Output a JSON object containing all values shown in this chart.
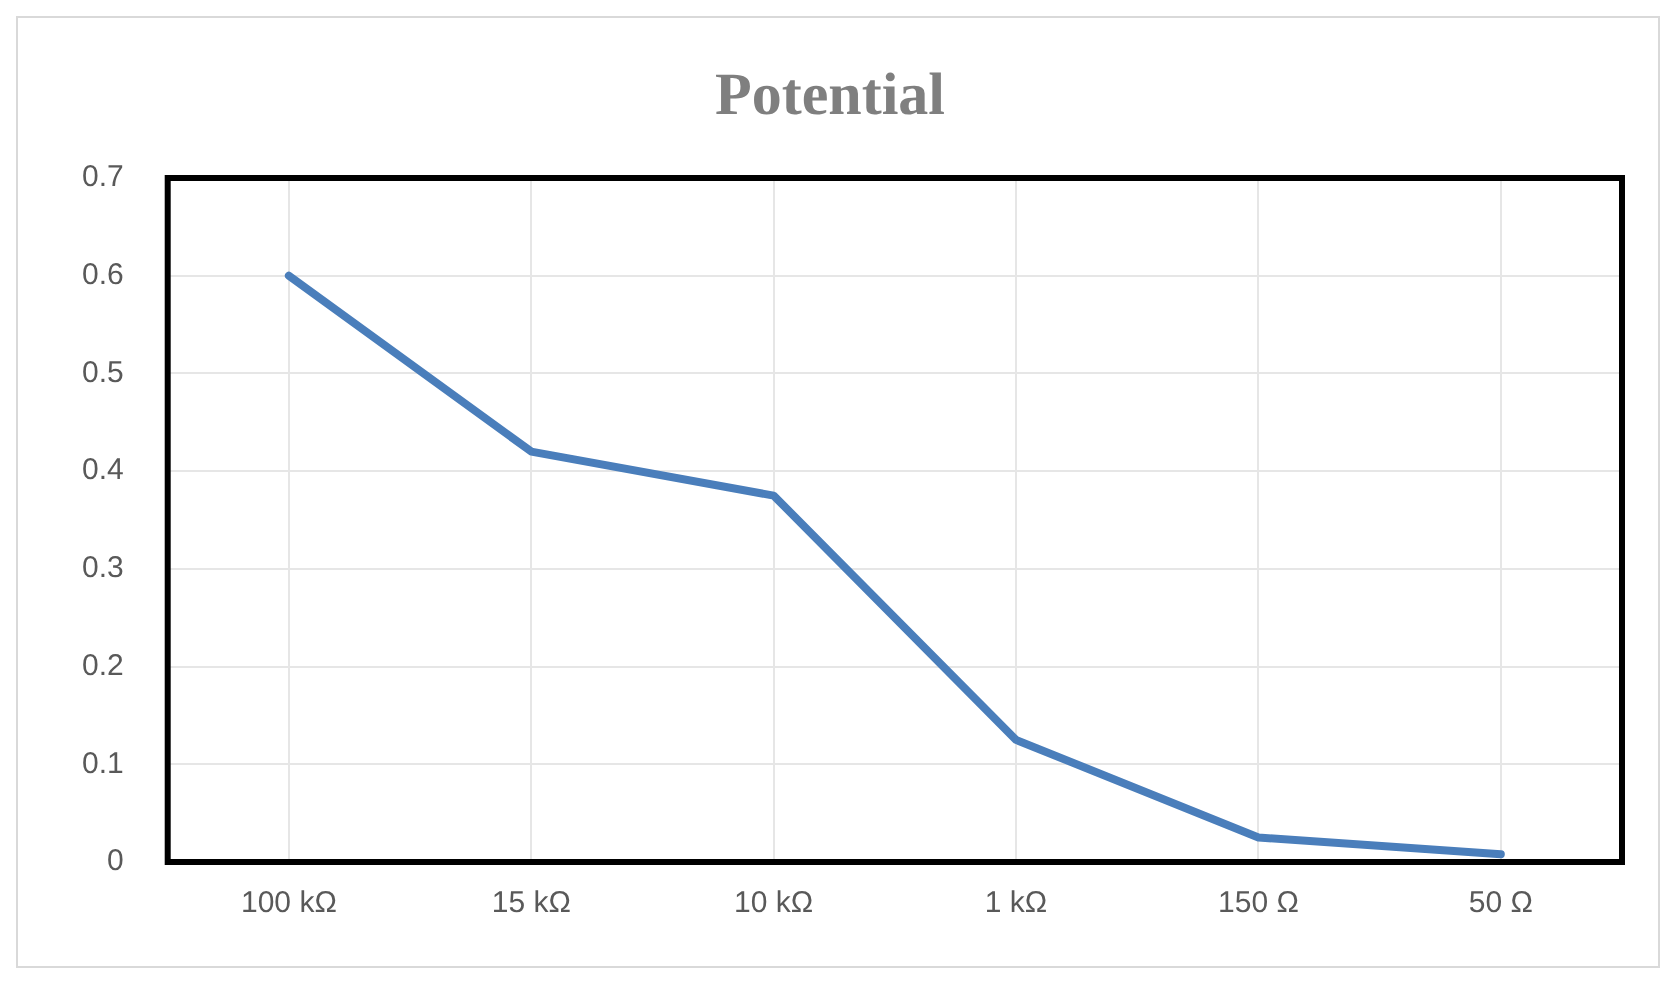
{
  "chart_data": {
    "type": "line",
    "title": "Potential",
    "categories": [
      "100 kΩ",
      "15 kΩ",
      "10 kΩ",
      "1 kΩ",
      "150 Ω",
      "50 Ω"
    ],
    "series": [
      {
        "color": "#4a7ebb",
        "values": [
          0.6,
          0.42,
          0.375,
          0.125,
          0.025,
          0.008
        ]
      }
    ],
    "ylim": [
      0,
      0.7
    ],
    "yticks": [
      0,
      0.1,
      0.2,
      0.3,
      0.4,
      0.5,
      0.6,
      0.7
    ],
    "grid": true,
    "legend": false,
    "marker": "none",
    "line_style": "solid"
  }
}
